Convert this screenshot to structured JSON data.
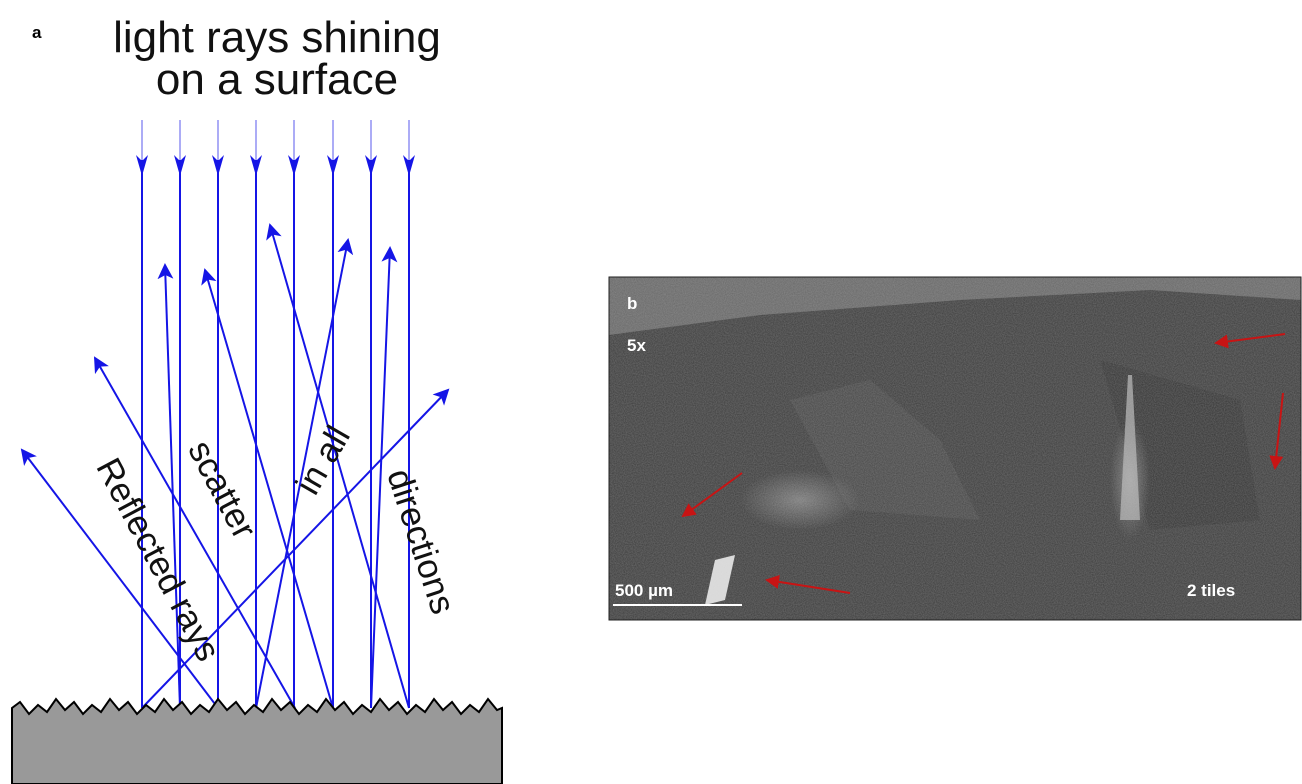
{
  "panel_a": {
    "label": "a",
    "title_lines": [
      "light rays shining",
      "on a surface"
    ],
    "annotations": [
      "Reflected rays",
      "scatter",
      "in all",
      "directions"
    ]
  },
  "panel_b": {
    "label": "b",
    "magnification": "5x",
    "scale_bar": "500 µm",
    "tiles": "2 tiles"
  }
}
